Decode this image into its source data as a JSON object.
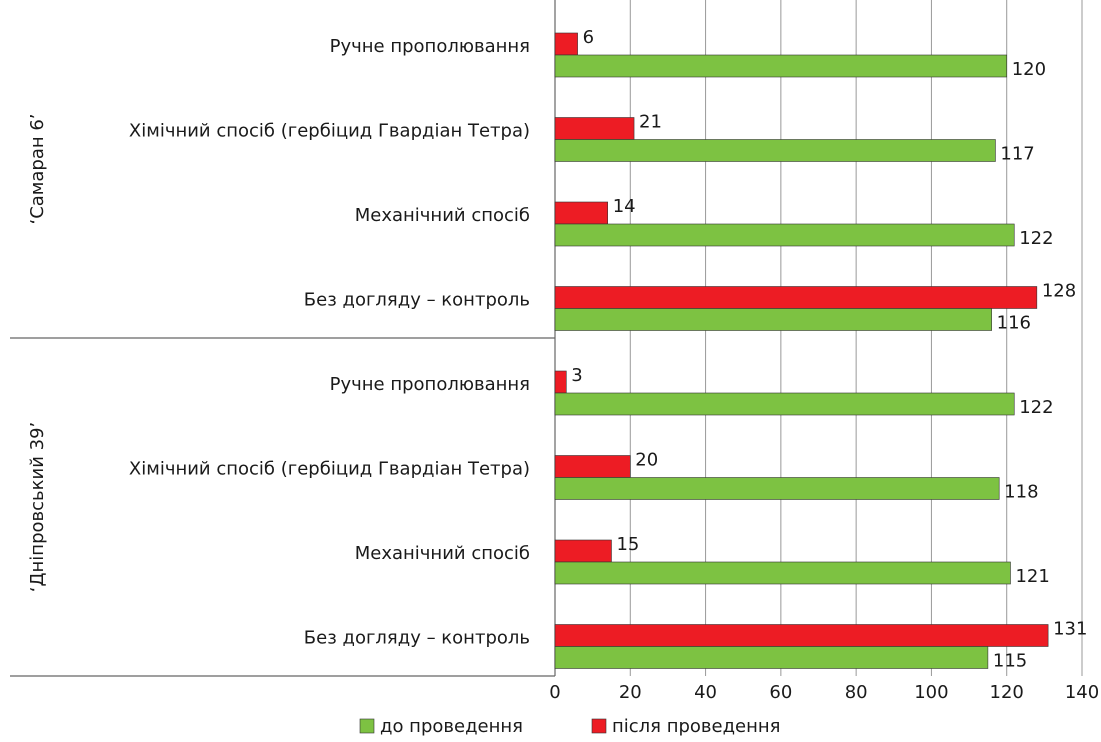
{
  "chart_data": {
    "type": "bar",
    "orientation": "horizontal",
    "groups": [
      "‘Самаран 6’",
      "‘Дніпровський 39’"
    ],
    "categories": [
      "Ручне прополювання",
      "Хімічний спосіб (гербіцид Гвардіан Тетра)",
      "Механічний спосіб",
      "Без догляду – контроль",
      "Ручне прополювання",
      "Хімічний спосіб (гербіцид Гвардіан Тетра)",
      "Механічний спосіб",
      "Без догляду – контроль"
    ],
    "series": [
      {
        "name": "до проведення",
        "color": "#7dc242",
        "values": [
          120,
          117,
          122,
          116,
          122,
          118,
          121,
          115
        ]
      },
      {
        "name": "після проведення",
        "color": "#ed1c24",
        "values": [
          6,
          21,
          14,
          128,
          3,
          20,
          15,
          131
        ]
      }
    ],
    "xlim": [
      0,
      140
    ],
    "xticks": [
      0,
      20,
      40,
      60,
      80,
      100,
      120,
      140
    ],
    "grid": true,
    "legend": "bottom"
  }
}
